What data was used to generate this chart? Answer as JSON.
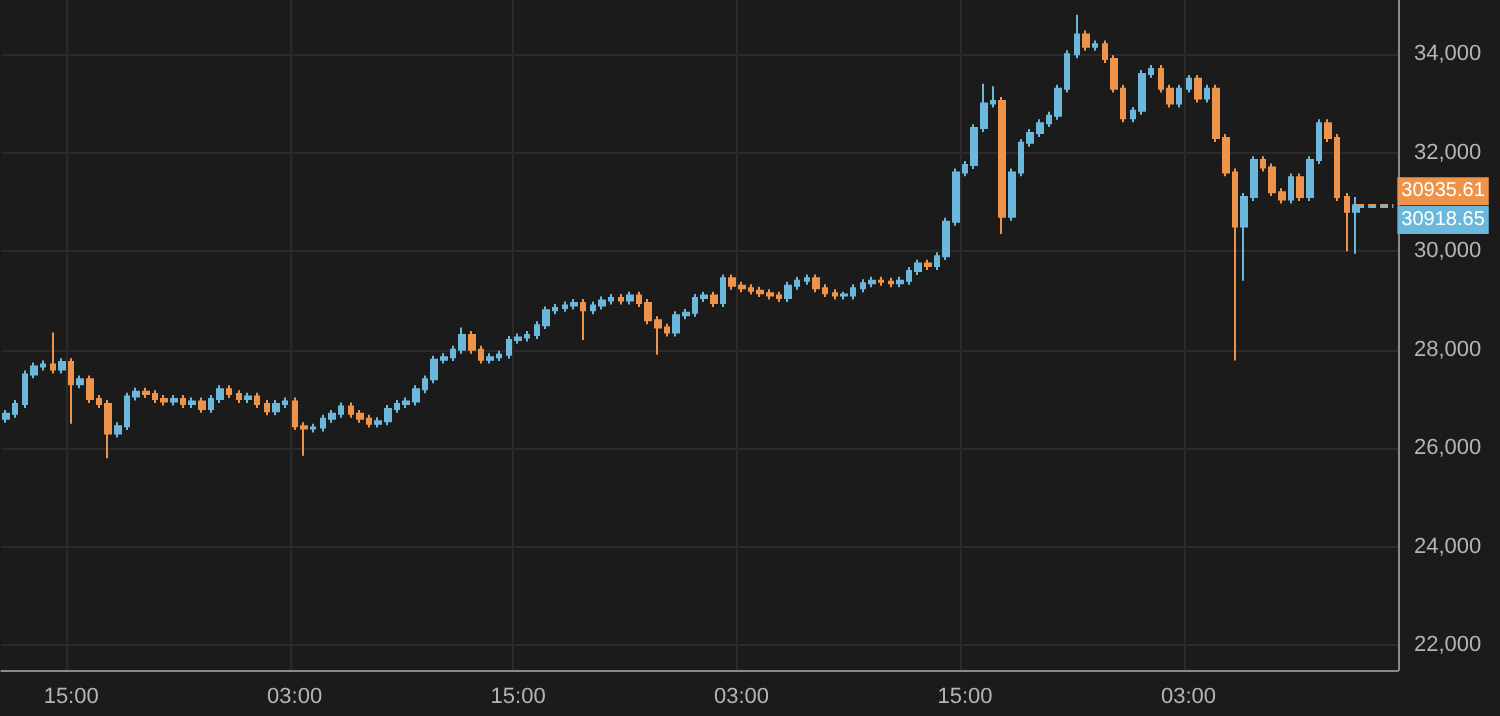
{
  "chart_data": {
    "type": "candlestick",
    "categories": [
      null,
      null,
      null,
      null,
      null,
      null,
      null,
      "15:00",
      null,
      null,
      null,
      null,
      null,
      null,
      null,
      null,
      null,
      null,
      null,
      null,
      null,
      null,
      null,
      null,
      null,
      null,
      null,
      null,
      null,
      null,
      null,
      "03:00",
      null,
      null,
      null,
      null,
      null,
      null,
      null,
      null,
      null,
      null,
      null,
      null,
      null,
      null,
      null,
      null,
      null,
      null,
      null,
      null,
      null,
      null,
      null,
      "15:00",
      null,
      null,
      null,
      null,
      null,
      null,
      null,
      null,
      null,
      null,
      null,
      null,
      null,
      null,
      null,
      null,
      null,
      null,
      null,
      null,
      null,
      null,
      null,
      "03:00",
      null,
      null,
      null,
      null,
      null,
      null,
      null,
      null,
      null,
      null,
      null,
      null,
      null,
      null,
      null,
      null,
      null,
      null,
      null,
      null,
      null,
      null,
      null,
      "15:00",
      null,
      null,
      null,
      null,
      null,
      null,
      null,
      null,
      null,
      null,
      null,
      null,
      null,
      null,
      null,
      null,
      null,
      null,
      null,
      null,
      null,
      null,
      null,
      "03:00",
      null,
      null,
      null,
      null,
      null,
      null,
      null,
      null,
      null,
      null,
      null,
      null,
      null,
      null,
      null,
      null,
      null,
      null,
      null,
      null,
      null,
      null
    ],
    "ohlc": [
      [
        26600,
        26780,
        26520,
        26700
      ],
      [
        26700,
        26980,
        26620,
        26900
      ],
      [
        26900,
        27580,
        26820,
        27500
      ],
      [
        27500,
        27740,
        27420,
        27660
      ],
      [
        27660,
        27780,
        27580,
        27700
      ],
      [
        27700,
        28350,
        27520,
        27600
      ],
      [
        27600,
        27830,
        27520,
        27750
      ],
      [
        27750,
        27830,
        26500,
        27300
      ],
      [
        27300,
        27480,
        27220,
        27400
      ],
      [
        27400,
        27480,
        26920,
        27000
      ],
      [
        27000,
        27080,
        26820,
        26900
      ],
      [
        26900,
        26980,
        25800,
        26300
      ],
      [
        26300,
        26530,
        26220,
        26450
      ],
      [
        26450,
        27130,
        26370,
        27050
      ],
      [
        27050,
        27230,
        26970,
        27150
      ],
      [
        27150,
        27230,
        27020,
        27100
      ],
      [
        27100,
        27180,
        26920,
        27000
      ],
      [
        27000,
        27080,
        26870,
        26950
      ],
      [
        26950,
        27080,
        26870,
        27000
      ],
      [
        27000,
        27080,
        26820,
        26900
      ],
      [
        26900,
        27030,
        26820,
        26950
      ],
      [
        26950,
        27030,
        26720,
        26800
      ],
      [
        26800,
        27080,
        26720,
        27000
      ],
      [
        27000,
        27280,
        26920,
        27200
      ],
      [
        27200,
        27280,
        27020,
        27100
      ],
      [
        27100,
        27180,
        26920,
        27000
      ],
      [
        27000,
        27130,
        26920,
        27050
      ],
      [
        27050,
        27130,
        26820,
        26900
      ],
      [
        26900,
        26980,
        26670,
        26750
      ],
      [
        26750,
        26980,
        26670,
        26900
      ],
      [
        26900,
        27030,
        26820,
        26950
      ],
      [
        26950,
        27030,
        26370,
        26450
      ],
      [
        26450,
        26530,
        25850,
        26400
      ],
      [
        26400,
        26500,
        26320,
        26420
      ],
      [
        26420,
        26680,
        26340,
        26600
      ],
      [
        26600,
        26780,
        26520,
        26700
      ],
      [
        26700,
        26930,
        26620,
        26850
      ],
      [
        26850,
        26930,
        26620,
        26700
      ],
      [
        26700,
        26780,
        26520,
        26600
      ],
      [
        26600,
        26680,
        26420,
        26500
      ],
      [
        26500,
        26630,
        26420,
        26550
      ],
      [
        26550,
        26880,
        26470,
        26800
      ],
      [
        26800,
        26980,
        26720,
        26900
      ],
      [
        26900,
        27030,
        26820,
        26950
      ],
      [
        26950,
        27280,
        26870,
        27200
      ],
      [
        27200,
        27480,
        27120,
        27400
      ],
      [
        27400,
        27880,
        27320,
        27800
      ],
      [
        27800,
        27930,
        27720,
        27850
      ],
      [
        27850,
        28080,
        27770,
        28000
      ],
      [
        28000,
        28450,
        27920,
        28300
      ],
      [
        28300,
        28380,
        27920,
        28000
      ],
      [
        28000,
        28080,
        27720,
        27800
      ],
      [
        27800,
        27930,
        27720,
        27850
      ],
      [
        27850,
        27980,
        27770,
        27900
      ],
      [
        27900,
        28280,
        27820,
        28200
      ],
      [
        28200,
        28330,
        28120,
        28250
      ],
      [
        28250,
        28380,
        28170,
        28300
      ],
      [
        28300,
        28580,
        28220,
        28500
      ],
      [
        28500,
        28880,
        28420,
        28800
      ],
      [
        28800,
        28930,
        28720,
        28850
      ],
      [
        28850,
        28980,
        28770,
        28900
      ],
      [
        28900,
        29030,
        28820,
        28950
      ],
      [
        28950,
        29030,
        28200,
        28800
      ],
      [
        28800,
        28980,
        28720,
        28900
      ],
      [
        28900,
        29080,
        28820,
        29000
      ],
      [
        29000,
        29130,
        28920,
        29050
      ],
      [
        29050,
        29130,
        28920,
        29000
      ],
      [
        29000,
        29180,
        28920,
        29100
      ],
      [
        29100,
        29180,
        28870,
        28950
      ],
      [
        28950,
        29030,
        28520,
        28600
      ],
      [
        28600,
        28680,
        27900,
        28450
      ],
      [
        28450,
        28530,
        28270,
        28350
      ],
      [
        28350,
        28780,
        28270,
        28700
      ],
      [
        28700,
        28830,
        28620,
        28750
      ],
      [
        28750,
        29130,
        28670,
        29050
      ],
      [
        29050,
        29180,
        28970,
        29100
      ],
      [
        29100,
        29180,
        28870,
        28950
      ],
      [
        28950,
        29530,
        28870,
        29450
      ],
      [
        29450,
        29530,
        29220,
        29300
      ],
      [
        29300,
        29380,
        29170,
        29250
      ],
      [
        29250,
        29330,
        29120,
        29200
      ],
      [
        29200,
        29280,
        29070,
        29150
      ],
      [
        29150,
        29230,
        29020,
        29100
      ],
      [
        29100,
        29180,
        28970,
        29050
      ],
      [
        29050,
        29380,
        28970,
        29300
      ],
      [
        29300,
        29480,
        29220,
        29400
      ],
      [
        29400,
        29530,
        29320,
        29450
      ],
      [
        29450,
        29530,
        29170,
        29250
      ],
      [
        29250,
        29330,
        29070,
        29150
      ],
      [
        29150,
        29230,
        29020,
        29100
      ],
      [
        29100,
        29180,
        29020,
        29120
      ],
      [
        29100,
        29330,
        29020,
        29250
      ],
      [
        29250,
        29430,
        29170,
        29350
      ],
      [
        29350,
        29480,
        29270,
        29400
      ],
      [
        29400,
        29480,
        29300,
        29380
      ],
      [
        29380,
        29460,
        29270,
        29350
      ],
      [
        29350,
        29480,
        29270,
        29400
      ],
      [
        29400,
        29680,
        29320,
        29600
      ],
      [
        29600,
        29830,
        29520,
        29750
      ],
      [
        29750,
        29830,
        29620,
        29700
      ],
      [
        29700,
        29980,
        29620,
        29900
      ],
      [
        29900,
        30680,
        29820,
        30600
      ],
      [
        30600,
        31680,
        30520,
        31600
      ],
      [
        31600,
        31830,
        31520,
        31750
      ],
      [
        31750,
        32580,
        31670,
        32500
      ],
      [
        32500,
        33400,
        32420,
        33000
      ],
      [
        33000,
        33350,
        32920,
        33050
      ],
      [
        33050,
        33130,
        30350,
        30700
      ],
      [
        30700,
        31680,
        30620,
        31600
      ],
      [
        31600,
        32280,
        31520,
        32200
      ],
      [
        32200,
        32480,
        32120,
        32400
      ],
      [
        32400,
        32680,
        32320,
        32600
      ],
      [
        32600,
        32830,
        32520,
        32750
      ],
      [
        32750,
        33380,
        32670,
        33300
      ],
      [
        33300,
        34080,
        33220,
        34000
      ],
      [
        34000,
        34800,
        33920,
        34400
      ],
      [
        34400,
        34480,
        34070,
        34150
      ],
      [
        34150,
        34280,
        34070,
        34200
      ],
      [
        34200,
        34280,
        33820,
        33900
      ],
      [
        33900,
        33980,
        33220,
        33300
      ],
      [
        33300,
        33380,
        32620,
        32700
      ],
      [
        32700,
        32930,
        32620,
        32850
      ],
      [
        32850,
        33680,
        32770,
        33600
      ],
      [
        33600,
        33780,
        33520,
        33700
      ],
      [
        33700,
        33780,
        33220,
        33300
      ],
      [
        33300,
        33380,
        32920,
        33000
      ],
      [
        33000,
        33380,
        32920,
        33300
      ],
      [
        33300,
        33580,
        33220,
        33500
      ],
      [
        33500,
        33580,
        33020,
        33100
      ],
      [
        33100,
        33380,
        33020,
        33300
      ],
      [
        33300,
        33380,
        32220,
        32300
      ],
      [
        32300,
        32380,
        31520,
        31600
      ],
      [
        31600,
        31680,
        27780,
        30500
      ],
      [
        30500,
        31180,
        29400,
        31100
      ],
      [
        31100,
        31930,
        31020,
        31850
      ],
      [
        31850,
        31930,
        31620,
        31700
      ],
      [
        31700,
        31780,
        31120,
        31200
      ],
      [
        31200,
        31280,
        30970,
        31050
      ],
      [
        31050,
        31580,
        30970,
        31500
      ],
      [
        31500,
        31580,
        31020,
        31100
      ],
      [
        31100,
        31930,
        31020,
        31850
      ],
      [
        31850,
        32680,
        31770,
        32600
      ],
      [
        32600,
        32680,
        32220,
        32300
      ],
      [
        32300,
        32380,
        31020,
        31100
      ],
      [
        31100,
        31180,
        30000,
        30800
      ],
      [
        30800,
        31100,
        29950,
        30935.61
      ],
      null,
      null,
      null,
      null
    ],
    "colors": [
      "#6cb7dc",
      "#6cb7dc",
      "#6cb7dc",
      "#6cb7dc",
      "#6cb7dc",
      "#ee934a",
      "#6cb7dc",
      "#ee934a",
      "#6cb7dc",
      "#ee934a",
      "#ee934a",
      "#ee934a",
      "#6cb7dc",
      "#6cb7dc",
      "#6cb7dc",
      "#ee934a",
      "#ee934a",
      "#ee934a",
      "#6cb7dc",
      "#ee934a",
      "#6cb7dc",
      "#ee934a",
      "#6cb7dc",
      "#6cb7dc",
      "#ee934a",
      "#ee934a",
      "#6cb7dc",
      "#ee934a",
      "#ee934a",
      "#6cb7dc",
      "#6cb7dc",
      "#ee934a",
      "#ee934a",
      "#6cb7dc",
      "#6cb7dc",
      "#6cb7dc",
      "#6cb7dc",
      "#ee934a",
      "#ee934a",
      "#ee934a",
      "#6cb7dc",
      "#6cb7dc",
      "#6cb7dc",
      "#6cb7dc",
      "#6cb7dc",
      "#6cb7dc",
      "#6cb7dc",
      "#6cb7dc",
      "#6cb7dc",
      "#6cb7dc",
      "#ee934a",
      "#ee934a",
      "#6cb7dc",
      "#6cb7dc",
      "#6cb7dc",
      "#6cb7dc",
      "#6cb7dc",
      "#6cb7dc",
      "#6cb7dc",
      "#6cb7dc",
      "#6cb7dc",
      "#6cb7dc",
      "#ee934a",
      "#6cb7dc",
      "#6cb7dc",
      "#6cb7dc",
      "#ee934a",
      "#6cb7dc",
      "#ee934a",
      "#ee934a",
      "#ee934a",
      "#ee934a",
      "#6cb7dc",
      "#6cb7dc",
      "#6cb7dc",
      "#6cb7dc",
      "#ee934a",
      "#6cb7dc",
      "#ee934a",
      "#ee934a",
      "#ee934a",
      "#ee934a",
      "#ee934a",
      "#ee934a",
      "#6cb7dc",
      "#6cb7dc",
      "#6cb7dc",
      "#ee934a",
      "#ee934a",
      "#ee934a",
      "#6cb7dc",
      "#6cb7dc",
      "#6cb7dc",
      "#6cb7dc",
      "#ee934a",
      "#ee934a",
      "#6cb7dc",
      "#6cb7dc",
      "#6cb7dc",
      "#ee934a",
      "#6cb7dc",
      "#6cb7dc",
      "#6cb7dc",
      "#6cb7dc",
      "#6cb7dc",
      "#6cb7dc",
      "#6cb7dc",
      "#ee934a",
      "#6cb7dc",
      "#6cb7dc",
      "#6cb7dc",
      "#6cb7dc",
      "#6cb7dc",
      "#6cb7dc",
      "#6cb7dc",
      "#6cb7dc",
      "#ee934a",
      "#6cb7dc",
      "#ee934a",
      "#ee934a",
      "#ee934a",
      "#6cb7dc",
      "#6cb7dc",
      "#6cb7dc",
      "#ee934a",
      "#ee934a",
      "#6cb7dc",
      "#6cb7dc",
      "#ee934a",
      "#6cb7dc",
      "#ee934a",
      "#ee934a",
      "#ee934a",
      "#6cb7dc",
      "#6cb7dc",
      "#ee934a",
      "#ee934a",
      "#ee934a",
      "#6cb7dc",
      "#ee934a",
      "#6cb7dc",
      "#6cb7dc",
      "#ee934a",
      "#ee934a",
      "#ee934a",
      "#6cb7dc",
      null,
      null,
      null,
      null
    ],
    "ylim": [
      21500,
      35100
    ],
    "yticks": [
      {
        "value": 22000,
        "label": "22,000"
      },
      {
        "value": 24000,
        "label": "24,000"
      },
      {
        "value": 26000,
        "label": "26,000"
      },
      {
        "value": 28000,
        "label": "28,000"
      },
      {
        "value": 30000,
        "label": "30,000"
      },
      {
        "value": 32000,
        "label": "32,000"
      },
      {
        "value": 34000,
        "label": "34,000"
      }
    ],
    "grid": true,
    "ref_lines": [
      {
        "axis": "y",
        "value": 30935.61,
        "label": "30935.61",
        "color": "#ee934a",
        "line_style": "dashed"
      },
      {
        "axis": "y",
        "value": 30918.65,
        "label": "30918.65",
        "color": "#6cb7dc",
        "line_style": "dashed"
      }
    ]
  }
}
